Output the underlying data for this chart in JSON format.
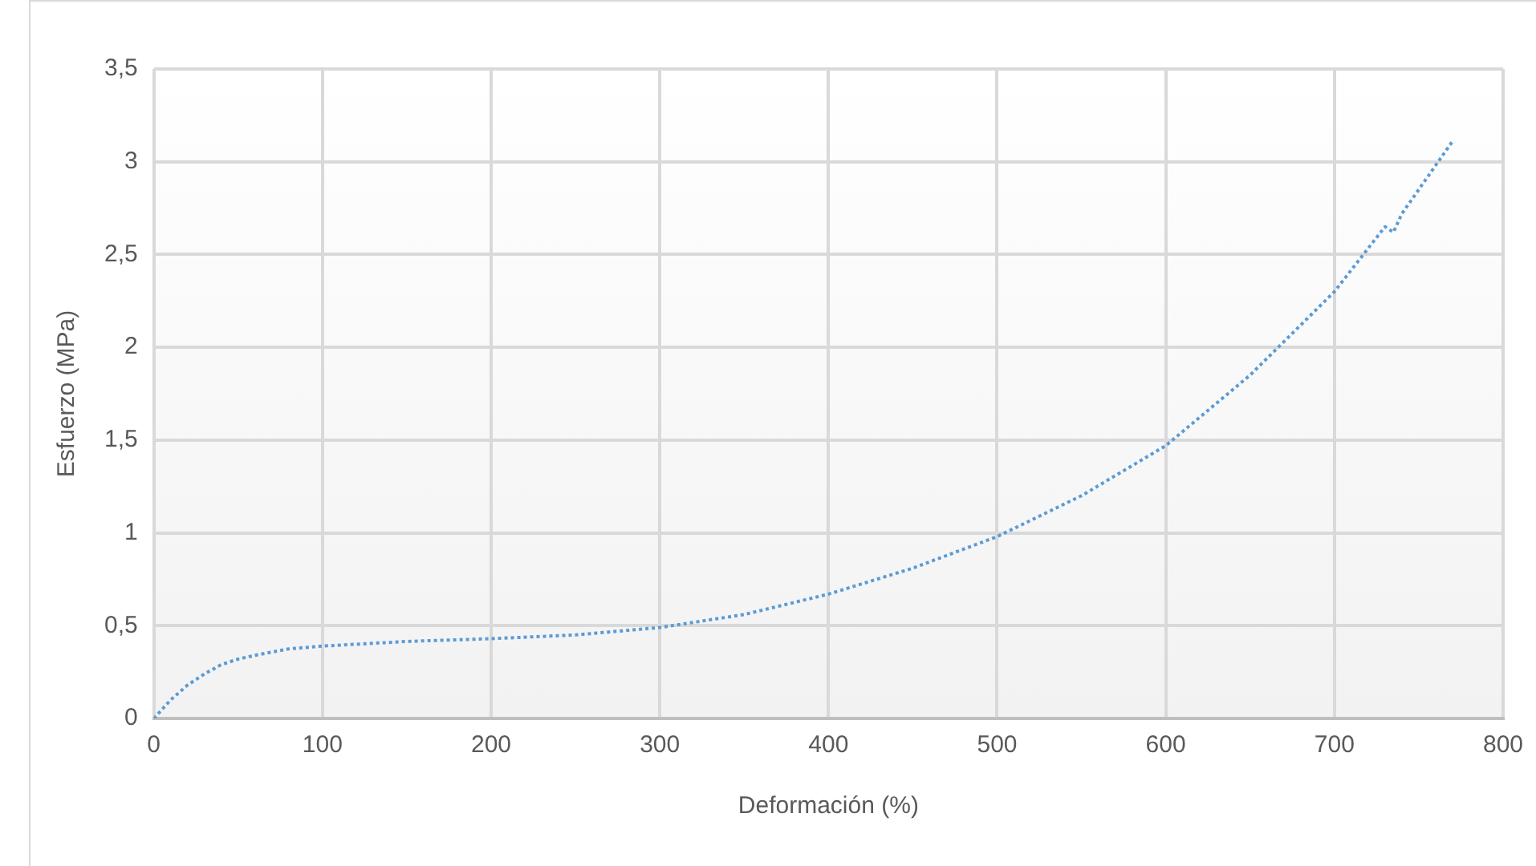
{
  "chart_data": {
    "type": "line",
    "xlabel": "Deformación (%)",
    "ylabel": "Esfuerzo (MPa)",
    "x": [
      0,
      10,
      20,
      30,
      40,
      50,
      60,
      80,
      100,
      150,
      200,
      250,
      300,
      350,
      400,
      450,
      500,
      550,
      600,
      650,
      700,
      730,
      735,
      740,
      770
    ],
    "series": [
      {
        "color": "#5b9bd5",
        "values": [
          0,
          0.1,
          0.18,
          0.24,
          0.29,
          0.32,
          0.34,
          0.375,
          0.39,
          0.415,
          0.43,
          0.45,
          0.49,
          0.56,
          0.67,
          0.81,
          0.98,
          1.2,
          1.47,
          1.85,
          2.3,
          2.65,
          2.62,
          2.72,
          3.11
        ]
      }
    ],
    "xlim": [
      0,
      800
    ],
    "xticks": [
      0,
      100,
      200,
      300,
      400,
      500,
      600,
      700,
      800
    ],
    "ylim": [
      0,
      3.5
    ],
    "yticks": [
      {
        "value": 0,
        "label": "0"
      },
      {
        "value": 0.5,
        "label": "0,5"
      },
      {
        "value": 1,
        "label": "1"
      },
      {
        "value": 1.5,
        "label": "1,5"
      },
      {
        "value": 2,
        "label": "2"
      },
      {
        "value": 2.5,
        "label": "2,5"
      },
      {
        "value": 3,
        "label": "3"
      },
      {
        "value": 3.5,
        "label": "3,5"
      }
    ],
    "grid": true,
    "legend": false,
    "marker": "none",
    "line_style": "dotted"
  }
}
